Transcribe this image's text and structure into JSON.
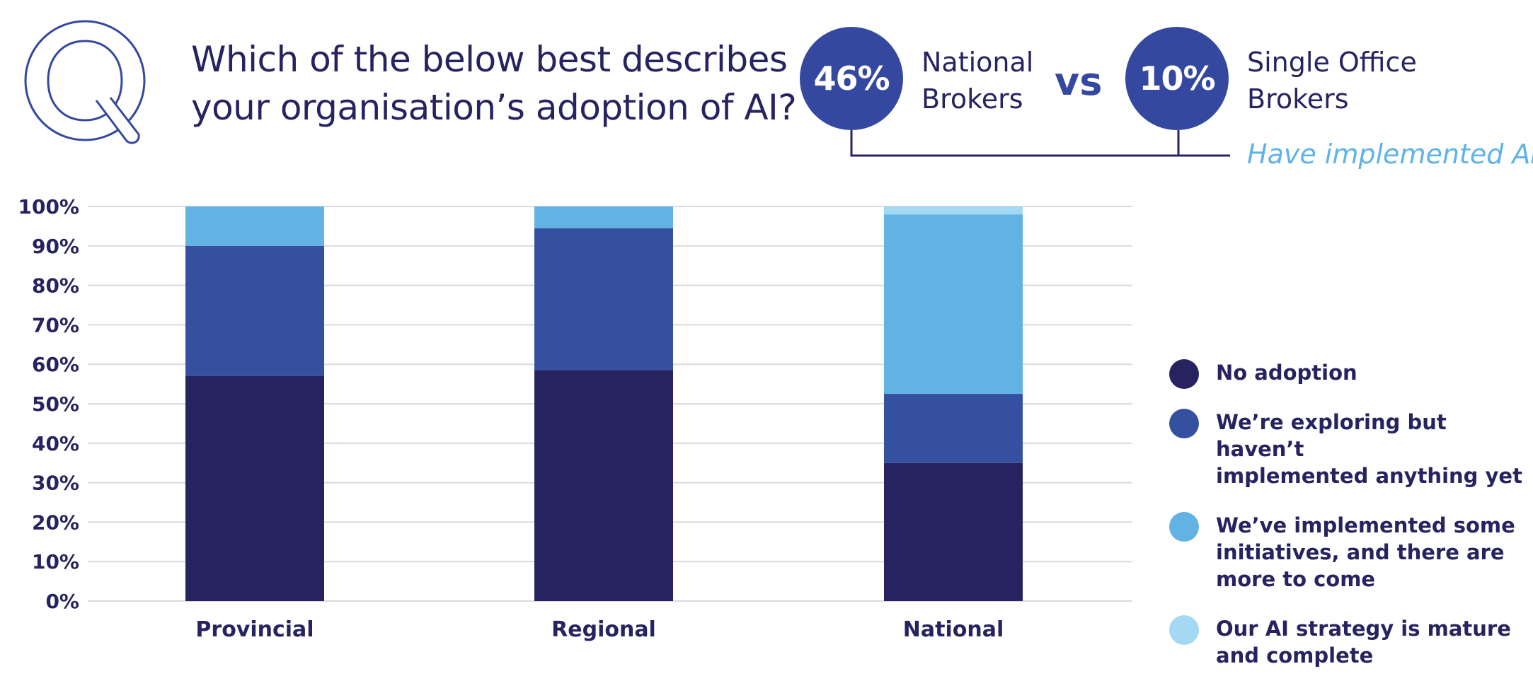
{
  "header": {
    "question_lines": [
      "Which of the below best describes",
      "your organisation’s adoption of AI?"
    ]
  },
  "comparison": {
    "left": {
      "value": "46%",
      "label_lines": [
        "National",
        "Brokers"
      ]
    },
    "separator": "vs",
    "right": {
      "value": "10%",
      "label_lines": [
        "Single Office",
        "Brokers"
      ]
    },
    "note": "Have implemented AI"
  },
  "colors": {
    "no_adoption": "#272360",
    "exploring": "#3650a0",
    "implemented_some": "#62b2e3",
    "mature": "#a4d9f3",
    "accent": "#3548a0",
    "note": "#5fb3e8"
  },
  "chart_data": {
    "type": "bar",
    "stacked": true,
    "categories": [
      "Provincial",
      "Regional",
      "National"
    ],
    "series": [
      {
        "name": "No adoption",
        "values": [
          57,
          58.5,
          35
        ]
      },
      {
        "name": "We’re exploring but haven’t implemented anything yet",
        "values": [
          33,
          36,
          17.5
        ]
      },
      {
        "name": "We’ve implemented some initiatives, and there are more to come",
        "values": [
          10,
          5.5,
          45.5
        ]
      },
      {
        "name": "Our AI strategy is mature and complete",
        "values": [
          0,
          0,
          2
        ]
      }
    ],
    "yticks": [
      "0%",
      "10%",
      "20%",
      "30%",
      "40%",
      "50%",
      "60%",
      "70%",
      "80%",
      "90%",
      "100%"
    ],
    "ylim": [
      0,
      100
    ],
    "grid": true,
    "legend_position": "right"
  },
  "legend": [
    {
      "lines": [
        "No adoption"
      ]
    },
    {
      "lines": [
        "We’re exploring but haven’t",
        "implemented anything yet"
      ]
    },
    {
      "lines": [
        "We’ve implemented some",
        "initiatives, and there are",
        "more to come"
      ]
    },
    {
      "lines": [
        "Our AI strategy is mature",
        "and complete"
      ]
    }
  ]
}
